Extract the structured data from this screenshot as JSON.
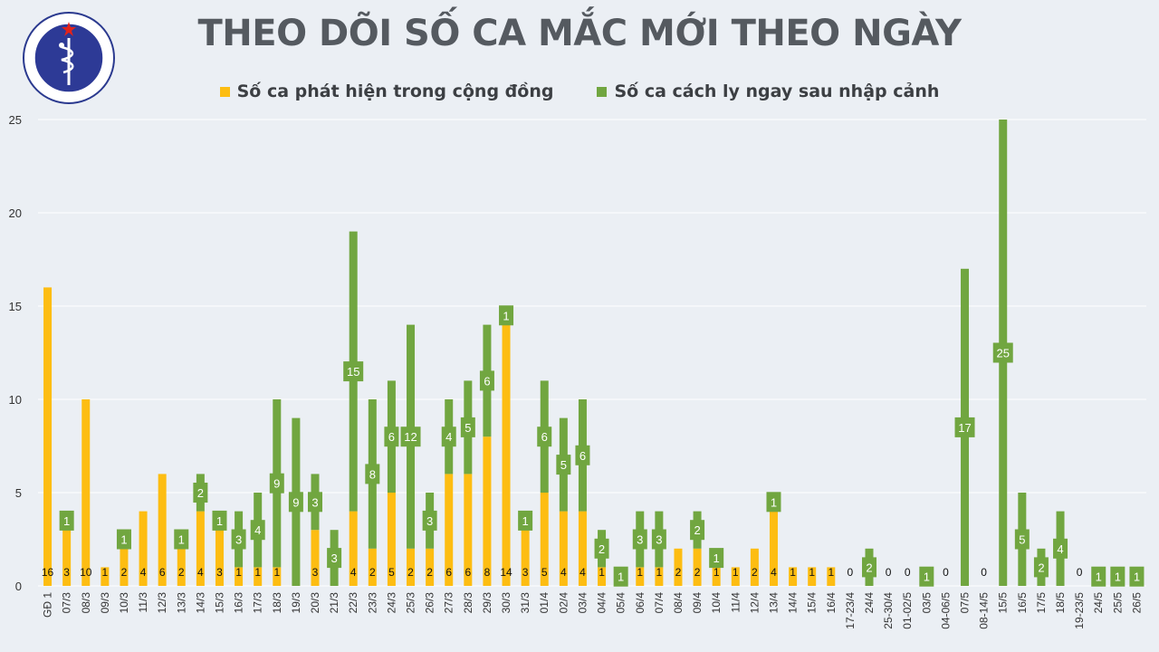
{
  "header": {
    "title": "THEO DÕI SỐ CA MẮC MỚI THEO NGÀY",
    "logo_text_top": "BỘ Y TẾ",
    "logo_text_bottom": "MINISTRY OF HEALTH"
  },
  "colors": {
    "community": "#fdbd12",
    "imported": "#71a640",
    "label_bg": "#71a640",
    "grid": "#ffffff",
    "axis_text": "#333333"
  },
  "chart_data": {
    "type": "bar",
    "stacked": true,
    "ylim": [
      0,
      25
    ],
    "yticks": [
      0,
      5,
      10,
      15,
      20,
      25
    ],
    "grid": true,
    "legend_position": "top",
    "categories": [
      "GĐ 1",
      "07/3",
      "08/3",
      "09/3",
      "10/3",
      "11/3",
      "12/3",
      "13/3",
      "14/3",
      "15/3",
      "16/3",
      "17/3",
      "18/3",
      "19/3",
      "20/3",
      "21/3",
      "22/3",
      "23/3",
      "24/3",
      "25/3",
      "26/3",
      "27/3",
      "28/3",
      "29/3",
      "30/3",
      "31/3",
      "01/4",
      "02/4",
      "03/4",
      "04/4",
      "05/4",
      "06/4",
      "07/4",
      "08/4",
      "09/4",
      "10/4",
      "11/4",
      "12/4",
      "13/4",
      "14/4",
      "15/4",
      "16/4",
      "17-23/4",
      "24/4",
      "25-30/4",
      "01-02/5",
      "03/5",
      "04-06/5",
      "07/5",
      "08-14/5",
      "15/5",
      "16/5",
      "17/5",
      "18/5",
      "19-23/5",
      "24/5",
      "25/5",
      "26/5"
    ],
    "series": [
      {
        "name": "Số ca phát hiện trong cộng đồng",
        "values": [
          16,
          3,
          10,
          1,
          2,
          4,
          6,
          2,
          4,
          3,
          1,
          1,
          1,
          0,
          3,
          0,
          4,
          2,
          5,
          2,
          2,
          6,
          6,
          8,
          14,
          3,
          5,
          4,
          4,
          1,
          0,
          1,
          1,
          2,
          2,
          1,
          1,
          2,
          4,
          1,
          1,
          1,
          0,
          0,
          0,
          0,
          0,
          0,
          0,
          0,
          0,
          0,
          0,
          0,
          0,
          0,
          0,
          0
        ],
        "labels": [
          "16",
          "3",
          "10",
          "1",
          "2",
          "4",
          "6",
          "2",
          "4",
          "3",
          "1",
          "1",
          "1",
          "",
          "3",
          "",
          "4",
          "2",
          "5",
          "2",
          "2",
          "6",
          "6",
          "8",
          "14",
          "3",
          "5",
          "4",
          "4",
          "1",
          "",
          "1",
          "1",
          "2",
          "2",
          "1",
          "1",
          "2",
          "4",
          "1",
          "1",
          "1",
          "0",
          "",
          "0",
          "0",
          "",
          "0",
          "",
          "0",
          "",
          "",
          "",
          "",
          "0",
          "",
          "",
          ""
        ]
      },
      {
        "name": "Số ca cách ly ngay sau nhập cảnh",
        "values": [
          0,
          1,
          0,
          0,
          1,
          0,
          0,
          1,
          2,
          1,
          3,
          4,
          9,
          9,
          3,
          3,
          15,
          8,
          6,
          12,
          3,
          4,
          5,
          6,
          1,
          1,
          6,
          5,
          6,
          2,
          1,
          3,
          3,
          0,
          2,
          1,
          0,
          0,
          1,
          0,
          0,
          0,
          0,
          2,
          0,
          0,
          1,
          0,
          17,
          0,
          25,
          5,
          2,
          4,
          0,
          1,
          1,
          1
        ],
        "labels": [
          "",
          "1",
          "",
          "",
          "1",
          "",
          "",
          "1",
          "2",
          "1",
          "3",
          "4",
          "9",
          "9",
          "3",
          "3",
          "15",
          "8",
          "6",
          "12",
          "3",
          "4",
          "5",
          "6",
          "1",
          "1",
          "6",
          "5",
          "6",
          "2",
          "1",
          "3",
          "3",
          "",
          "2",
          "1",
          "",
          "",
          "1",
          "",
          "",
          "",
          "",
          "2",
          "",
          "",
          "1",
          "",
          "17",
          "",
          "25",
          "5",
          "2",
          "4",
          "",
          "1",
          "1",
          "1"
        ]
      }
    ]
  }
}
